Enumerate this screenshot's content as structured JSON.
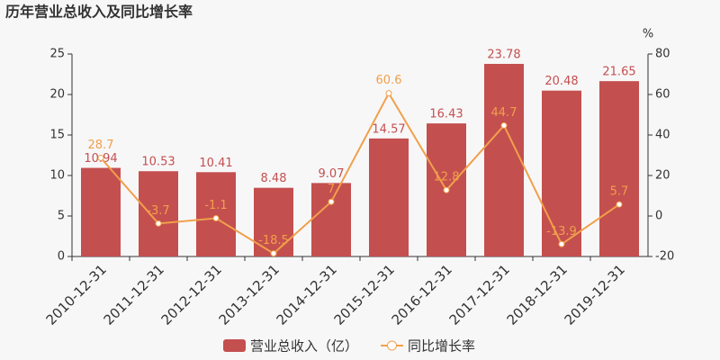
{
  "chart_data": {
    "type": "bar_line",
    "title": "历年营业总收入及同比增长率",
    "y2label": "%",
    "categories": [
      "2010-12-31",
      "2011-12-31",
      "2012-12-31",
      "2013-12-31",
      "2014-12-31",
      "2015-12-31",
      "2016-12-31",
      "2017-12-31",
      "2018-12-31",
      "2019-12-31"
    ],
    "series": [
      {
        "name": "营业总收入（亿）",
        "type": "bar",
        "color": "#c44f4f",
        "values": [
          10.94,
          10.53,
          10.41,
          8.48,
          9.07,
          14.57,
          16.43,
          23.78,
          20.48,
          21.65
        ]
      },
      {
        "name": "同比增长率",
        "type": "line",
        "axis": "y2",
        "color": "#f0a04b",
        "values": [
          28.7,
          -3.7,
          -1.1,
          -18.5,
          7,
          60.6,
          12.8,
          44.7,
          -13.9,
          5.7
        ]
      }
    ],
    "ylim": [
      0,
      25
    ],
    "yticks": [
      0,
      5,
      10,
      15,
      20,
      25
    ],
    "y2lim": [
      -20,
      80
    ],
    "y2ticks": [
      -20,
      0,
      20,
      40,
      60,
      80
    ]
  }
}
